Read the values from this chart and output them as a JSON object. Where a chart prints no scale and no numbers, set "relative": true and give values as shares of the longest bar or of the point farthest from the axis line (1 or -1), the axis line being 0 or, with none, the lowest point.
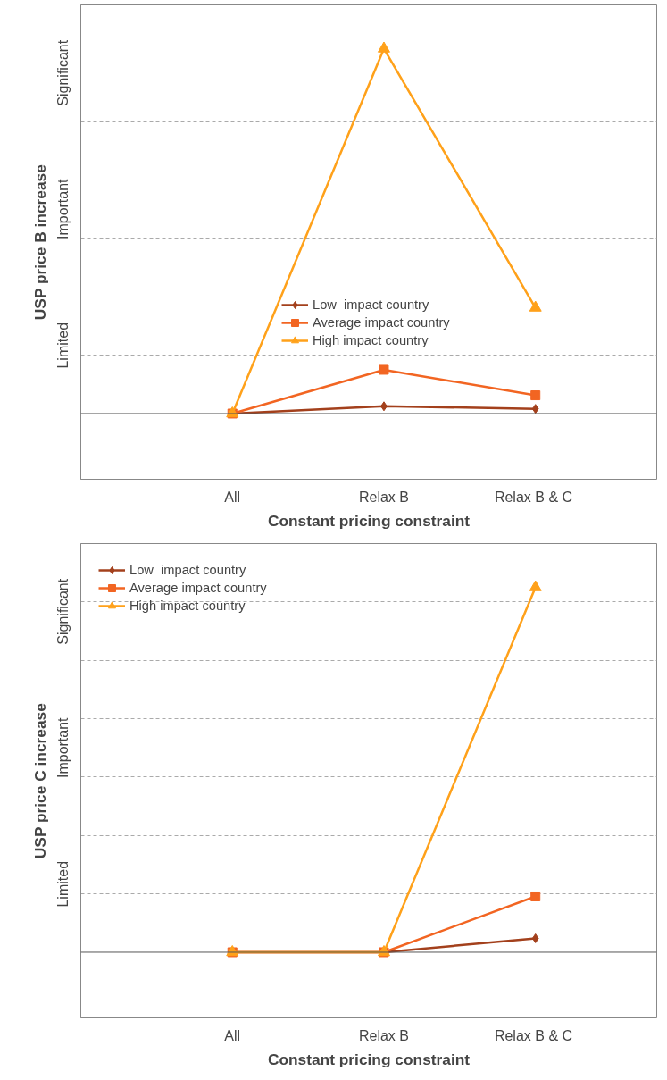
{
  "chart_data": [
    {
      "type": "line",
      "relative": true,
      "xlabel": "Constant pricing constraint",
      "ylabel": "USP price B increase",
      "categories": [
        "All",
        "Relax B",
        "Relax B &  C"
      ],
      "annotations": [
        "Limited",
        "Important",
        "Significant"
      ],
      "grid": "y",
      "legend": "center",
      "line_style": "solid",
      "series": [
        {
          "name": "Low  impact country",
          "color": "#a3401c",
          "marker": "diamond",
          "values": [
            0,
            0.02,
            0.013
          ]
        },
        {
          "name": "Average impact country",
          "color": "#f26522",
          "marker": "square",
          "values": [
            0,
            0.12,
            0.05
          ]
        },
        {
          "name": "High impact country",
          "color": "#ffa11a",
          "marker": "triangle",
          "values": [
            0,
            1,
            0.29
          ]
        }
      ]
    },
    {
      "type": "line",
      "relative": true,
      "xlabel": "Constant pricing constraint",
      "ylabel": "USP price C increase",
      "categories": [
        "All",
        "Relax B",
        "Relax B &  C"
      ],
      "annotations": [
        "Limited",
        "Important",
        "Significant"
      ],
      "grid": "y",
      "legend": "top left",
      "line_style": "solid",
      "series": [
        {
          "name": "Low  impact country",
          "color": "#a3401c",
          "marker": "diamond",
          "values": [
            0,
            0,
            0.038
          ]
        },
        {
          "name": "Average impact country",
          "color": "#f26522",
          "marker": "square",
          "values": [
            0,
            0,
            0.153
          ]
        },
        {
          "name": "High impact country",
          "color": "#ffa11a",
          "marker": "triangle",
          "values": [
            0,
            0,
            1
          ]
        }
      ]
    }
  ]
}
